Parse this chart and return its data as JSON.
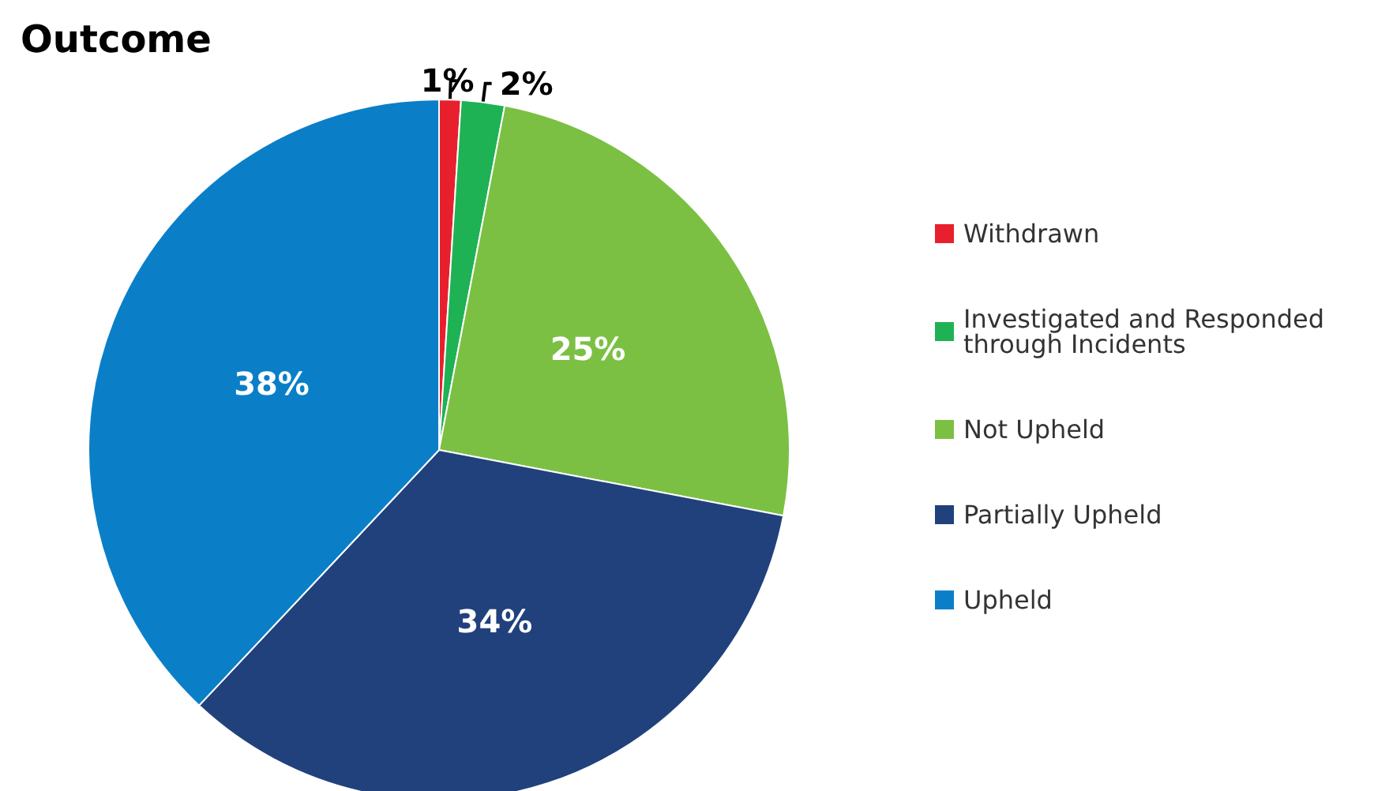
{
  "chart_data": {
    "type": "pie",
    "title": "Outcome",
    "categories": [
      "Withdrawn",
      "Investigated and Responded through Incidents",
      "Not Upheld",
      "Partially Upheld",
      "Upheld"
    ],
    "values": [
      1,
      2,
      25,
      34,
      38
    ],
    "colors": [
      "#e8202e",
      "#1fb254",
      "#7bc043",
      "#21417c",
      "#0a7fc8"
    ],
    "value_labels": [
      "1%",
      "2%",
      "25%",
      "34%",
      "38%"
    ],
    "legend": "right"
  }
}
